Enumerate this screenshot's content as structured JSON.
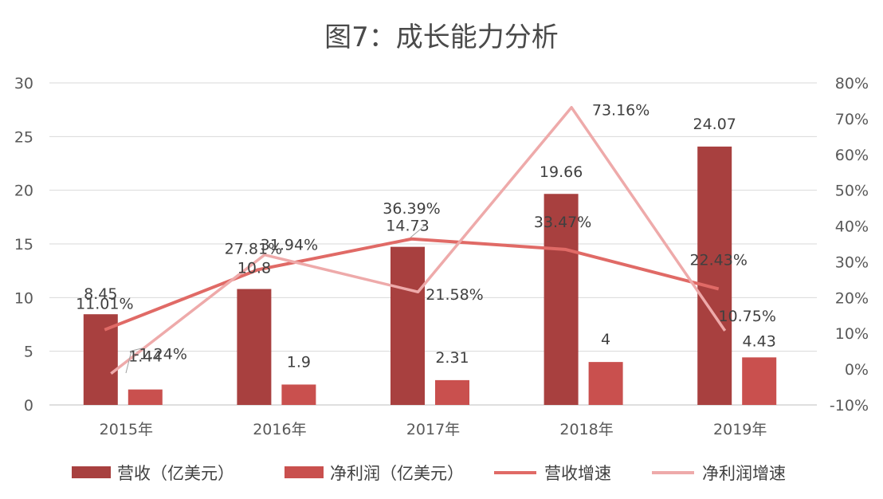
{
  "chart_data": {
    "type": "bar",
    "title": "图7：成长能力分析",
    "categories": [
      "2015年",
      "2016年",
      "2017年",
      "2018年",
      "2019年"
    ],
    "y_left": {
      "min": 0,
      "max": 30,
      "ticks": [
        "0",
        "5",
        "10",
        "15",
        "20",
        "25",
        "30"
      ]
    },
    "y_right": {
      "min": -10,
      "max": 80,
      "ticks": [
        "-10%",
        "0%",
        "10%",
        "20%",
        "30%",
        "40%",
        "50%",
        "60%",
        "70%",
        "80%"
      ]
    },
    "grid": true,
    "legend_position": "bottom",
    "series": [
      {
        "name": "营收（亿美元）",
        "type": "bar",
        "axis": "left",
        "color": "#a8403f",
        "values": [
          8.45,
          10.8,
          14.73,
          19.66,
          24.07
        ],
        "labels": [
          "8.45",
          "10.8",
          "14.73",
          "19.66",
          "24.07"
        ]
      },
      {
        "name": "净利润（亿美元）",
        "type": "bar",
        "axis": "left",
        "color": "#c9504e",
        "values": [
          1.44,
          1.9,
          2.31,
          4,
          4.43
        ],
        "labels": [
          "1.44",
          "1.9",
          "2.31",
          "4",
          "4.43"
        ]
      },
      {
        "name": "营收增速",
        "type": "line",
        "axis": "right",
        "color": "#e06a66",
        "values": [
          11.01,
          27.81,
          36.39,
          33.47,
          22.43
        ],
        "labels": [
          "11.01%",
          "27.81%",
          "36.39%",
          "33.47%",
          "22.43%"
        ]
      },
      {
        "name": "净利润增速",
        "type": "line",
        "axis": "right",
        "color": "#eeaaaa",
        "values": [
          -1.24,
          31.94,
          21.58,
          73.16,
          10.75
        ],
        "labels": [
          "-1.24%",
          "31.94%",
          "21.58%",
          "73.16%",
          "10.75%"
        ]
      }
    ]
  }
}
